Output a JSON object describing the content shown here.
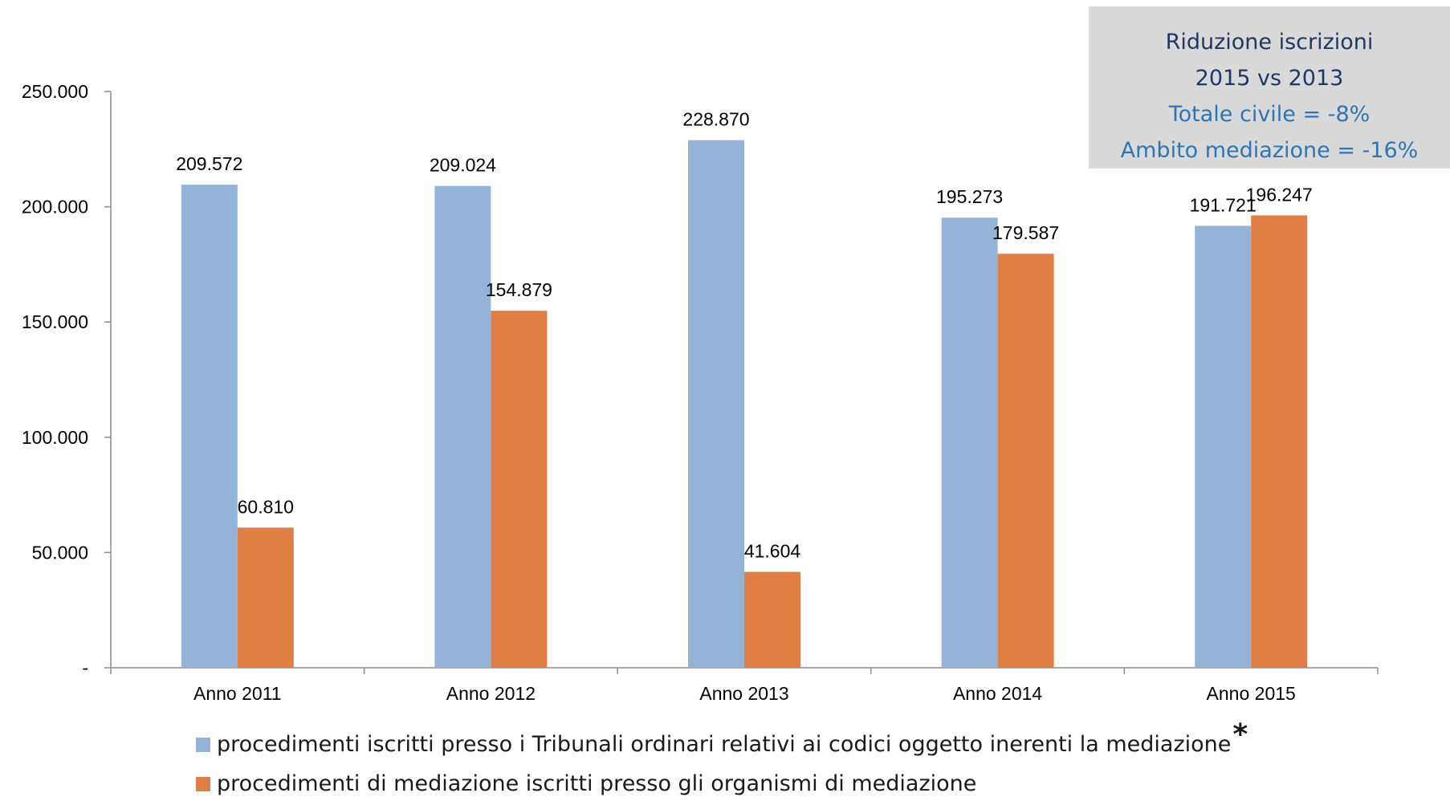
{
  "chart_data": {
    "type": "bar",
    "categories": [
      "Anno 2011",
      "Anno 2012",
      "Anno 2013",
      "Anno 2014",
      "Anno 2015"
    ],
    "series": [
      {
        "name": "procedimenti iscritti presso i Tribunali ordinari relativi ai codici oggetto inerenti la mediazione",
        "values": [
          209572,
          209024,
          228870,
          195273,
          191721
        ],
        "labels": [
          "209.572",
          "209.024",
          "228.870",
          "195.273",
          "191.721"
        ],
        "color": "#95b3d7"
      },
      {
        "name": "procedimenti di mediazione iscritti presso gli organismi di mediazione",
        "values": [
          60810,
          154879,
          41604,
          179587,
          196247
        ],
        "labels": [
          "60.810",
          "154.879",
          "41.604",
          "179.587",
          "196.247"
        ],
        "color": "#e07f45"
      }
    ],
    "ylim": [
      0,
      250000
    ],
    "yticks": [
      0,
      50000,
      100000,
      150000,
      200000,
      250000
    ],
    "ytick_labels": [
      "-",
      "50.000",
      "100.000",
      "150.000",
      "200.000",
      "250.000"
    ],
    "grid": false,
    "legend_position": "bottom",
    "legend_marker": "*"
  },
  "info_box": {
    "line1": "Riduzione iscrizioni",
    "line2": "2015 vs 2013",
    "line3": "Totale civile = -8%",
    "line4": "Ambito mediazione = -16%",
    "colors": {
      "dark": "#1f3864",
      "blue": "#2e75b6",
      "background": "#d9d9d9"
    }
  }
}
